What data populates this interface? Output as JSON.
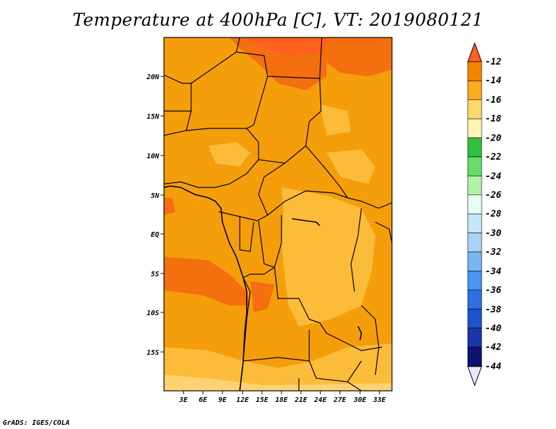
{
  "title": "Temperature at 400hPa [C], VT: 2019080121",
  "credit": "GrADS: IGES/COLA",
  "map": {
    "lat_labels": [
      "20N",
      "15N",
      "10N",
      "5N",
      "EQ",
      "5S",
      "10S",
      "15S"
    ],
    "lon_labels": [
      "3E",
      "6E",
      "9E",
      "12E",
      "15E",
      "18E",
      "21E",
      "24E",
      "27E",
      "30E",
      "33E"
    ]
  },
  "colorbar": {
    "labels": [
      "-12",
      "-14",
      "-16",
      "-18",
      "-20",
      "-22",
      "-24",
      "-26",
      "-28",
      "-30",
      "-32",
      "-34",
      "-36",
      "-38",
      "-40",
      "-42",
      "-44"
    ],
    "colors": [
      "#ff5f1f",
      "#f28500",
      "#fbab1e",
      "#fdd86a",
      "#fff6b4",
      "#33bf3f",
      "#66dc6a",
      "#b3f0a8",
      "#e6fff0",
      "#c6e7f9",
      "#a7d3f5",
      "#78b6f2",
      "#4c92f0",
      "#2f6fe5",
      "#1e53d0",
      "#1837a8",
      "#0b1470",
      "#e7e7ff"
    ],
    "note": "top color is the over-range triangle, last color is the under-range triangle"
  }
}
